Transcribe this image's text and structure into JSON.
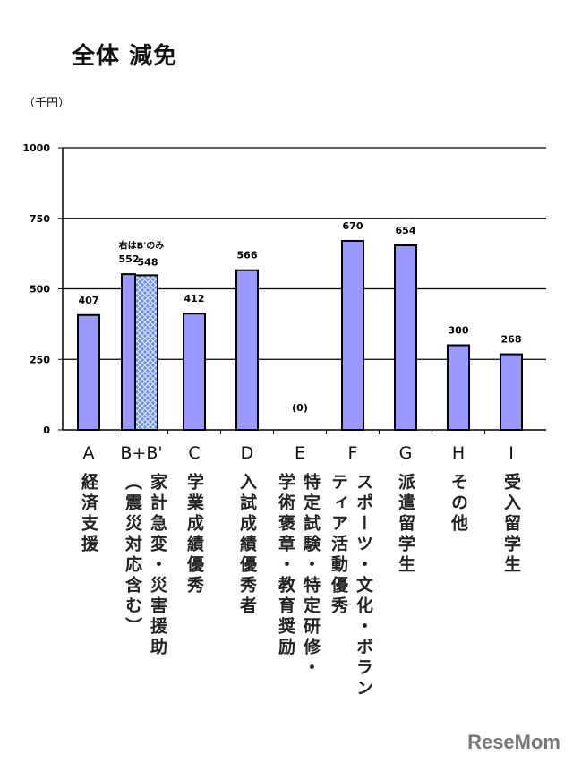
{
  "chart_data": {
    "type": "bar",
    "title": "全体 減免",
    "ylabel": "（千円）",
    "ylim": [
      0,
      1000
    ],
    "yticks": [
      0,
      250,
      500,
      750,
      1000
    ],
    "grid": true,
    "categories": [
      "A",
      "B+B'",
      "C",
      "D",
      "E",
      "F",
      "G",
      "H",
      "I"
    ],
    "category_descriptions": [
      "経済支援",
      "家計急変・災害援助\n（震災対応含む）",
      "学業成績優秀",
      "入試成績優秀者",
      "特定試験・特定研修・\n学術褒章・教育奨励",
      "スポーツ・文化・ボラン\nティア活動優秀",
      "派遣留学生",
      "その他",
      "受入留学生"
    ],
    "series": [
      {
        "values": [
          407,
          552,
          412,
          566,
          0,
          670,
          654,
          300,
          268
        ],
        "labels": [
          "407",
          "552",
          "412",
          "566",
          "(0)",
          "670",
          "654",
          "300",
          "268"
        ]
      }
    ],
    "extra_bar": {
      "category": "B+B'",
      "value": 548,
      "label": "548",
      "annotation": "右はB'のみ",
      "pattern": "hatched"
    },
    "colors": {
      "bar": "#9999ff",
      "bar_hatched": "#6b8fe0",
      "outline": "#000000"
    }
  },
  "watermark": "ReseMom"
}
